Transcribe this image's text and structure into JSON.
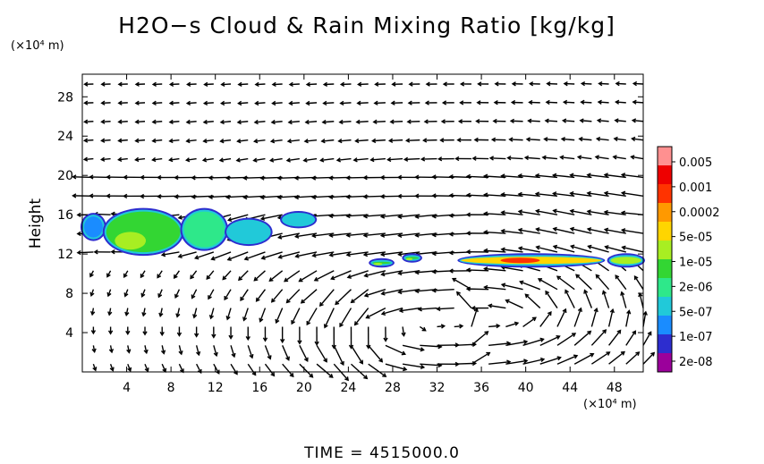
{
  "chart_data": {
    "type": "heatmap",
    "title": "H2O−s Cloud & Rain Mixing Ratio [kg/kg]",
    "ylabel": "Height",
    "x_unit_label": "(×10⁴ m)",
    "y_unit_label": "(×10⁴ m)",
    "footer": "TIME = 4515000.0",
    "x_ticks": [
      4,
      8,
      12,
      16,
      20,
      24,
      28,
      32,
      36,
      40,
      44,
      48
    ],
    "y_ticks": [
      4,
      8,
      12,
      16,
      20,
      24,
      28
    ],
    "xlim": [
      0,
      50.6
    ],
    "ylim": [
      0,
      30.3
    ],
    "colorbar": {
      "labels": [
        "0.005",
        "0.001",
        "0.0002",
        "5e-05",
        "1e-05",
        "2e-06",
        "5e-07",
        "1e-07",
        "2e-08"
      ],
      "colors": [
        "#9b009b",
        "#2d2dcf",
        "#1a8cff",
        "#21c9d9",
        "#2ee88a",
        "#33d633",
        "#a8ee22",
        "#ffd500",
        "#ff9900",
        "#ff3300",
        "#ee0000",
        "#ff9090"
      ]
    },
    "cloud_regions": [
      {
        "x": [
          0,
          2
        ],
        "y": [
          13.5,
          16
        ],
        "level": "1e-07"
      },
      {
        "x": [
          2,
          9
        ],
        "y": [
          12,
          16.5
        ],
        "level": "1e-05"
      },
      {
        "x": [
          9,
          13
        ],
        "y": [
          12.5,
          16.5
        ],
        "level": "2e-06"
      },
      {
        "x": [
          13,
          17
        ],
        "y": [
          13,
          15.5
        ],
        "level": "5e-07"
      },
      {
        "x": [
          18,
          21
        ],
        "y": [
          14.8,
          16.2
        ],
        "level": "5e-07"
      },
      {
        "x": [
          26,
          28
        ],
        "y": [
          10.8,
          11.4
        ],
        "level": "1e-05"
      },
      {
        "x": [
          29,
          30.5
        ],
        "y": [
          11.3,
          11.9
        ],
        "level": "1e-05"
      },
      {
        "x": [
          34,
          47
        ],
        "y": [
          10.8,
          11.9
        ],
        "level": "0.0002"
      },
      {
        "x": [
          47.5,
          50.6
        ],
        "y": [
          10.8,
          11.9
        ],
        "level": "5e-05"
      }
    ],
    "wind_field": "velocity vectors; upper troposphere easterly near y=18, circulation cells near x=28 and x=40 below y=10"
  }
}
